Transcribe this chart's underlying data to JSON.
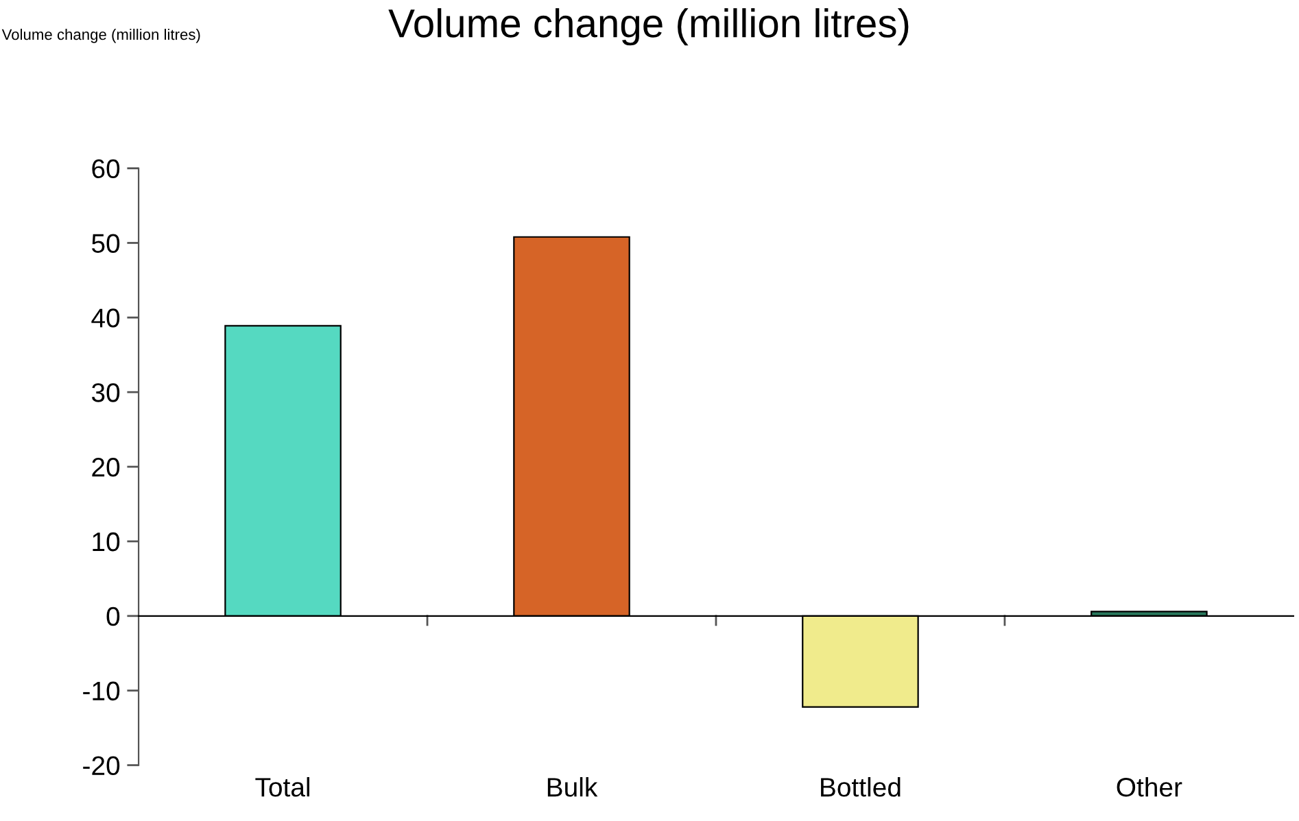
{
  "chart_data": {
    "type": "bar",
    "title": "Volume change (million litres)",
    "annotations": [
      "Volume change (million litres)"
    ],
    "categories": [
      "Total",
      "Bulk",
      "Bottled",
      "Other"
    ],
    "values": [
      38.9,
      50.8,
      -12.2,
      0.6
    ],
    "colors": [
      "#55d9c1",
      "#d66427",
      "#f0eb8c",
      "#2a7a5e"
    ],
    "ylim": [
      -20,
      60
    ],
    "yticks": [
      -20,
      -10,
      0,
      10,
      20,
      30,
      40,
      50,
      60
    ],
    "legend": false
  }
}
